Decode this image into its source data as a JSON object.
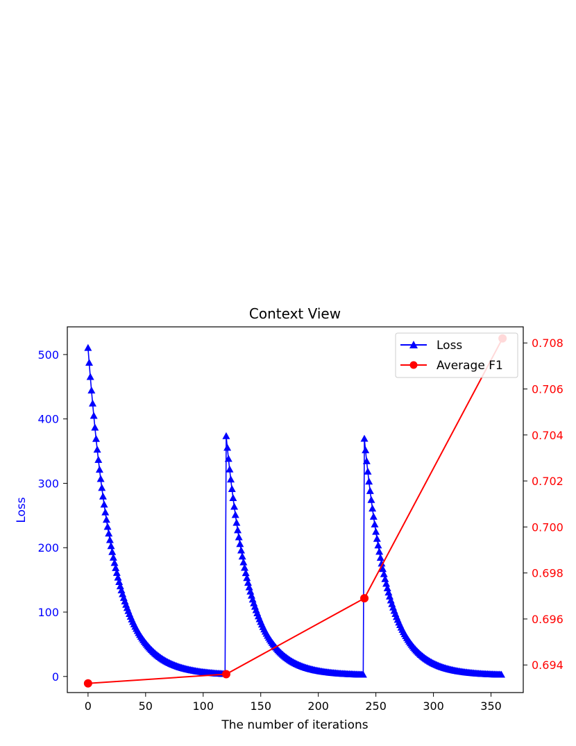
{
  "chart_data": {
    "type": "line",
    "title": "Context View",
    "xlabel": "The number of iterations",
    "ylabel_left": "Loss",
    "ylabel_right": "",
    "xlim": [
      -18,
      378
    ],
    "ylim_left": [
      -25,
      543
    ],
    "ylim_right": [
      0.6928,
      0.7087
    ],
    "x_ticks": [
      "0",
      "50",
      "100",
      "150",
      "200",
      "250",
      "300",
      "350"
    ],
    "y_ticks_left": [
      "0",
      "100",
      "200",
      "300",
      "400",
      "500"
    ],
    "y_ticks_right": [
      "0.694",
      "0.696",
      "0.698",
      "0.700",
      "0.702",
      "0.704",
      "0.706",
      "0.708"
    ],
    "legend_position": "top-right",
    "grid": false,
    "colors": {
      "loss": "#0000ff",
      "f1": "#ff0000"
    },
    "series": [
      {
        "name": "Loss",
        "axis": "left",
        "marker": "triangle",
        "segments": [
          {
            "start": 0,
            "end": 119,
            "peak": 510,
            "tau": 21.5,
            "floor": 1.5
          },
          {
            "start": 120,
            "end": 239,
            "peak": 373,
            "tau": 20,
            "floor": 1.5
          },
          {
            "start": 240,
            "end": 359,
            "peak": 369,
            "tau": 20,
            "floor": 1.5
          }
        ]
      },
      {
        "name": "Average F1",
        "axis": "right",
        "marker": "circle",
        "x": [
          0,
          120,
          240,
          360
        ],
        "y": [
          0.6932,
          0.6936,
          0.6969,
          0.7082
        ]
      }
    ]
  }
}
